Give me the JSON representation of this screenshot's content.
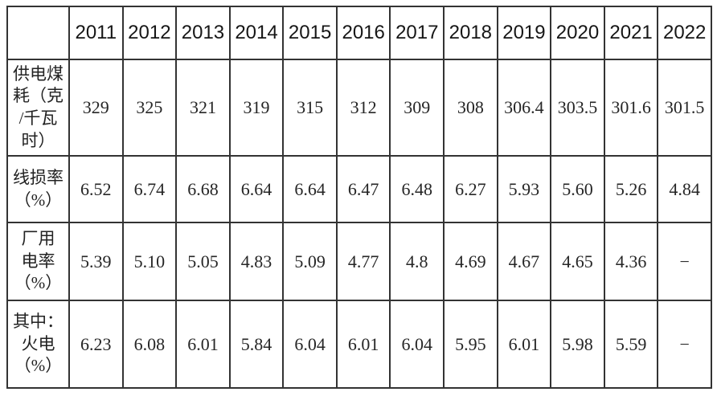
{
  "chart_data": {
    "type": "table",
    "corner_label": "",
    "columns": [
      "2011",
      "2012",
      "2013",
      "2014",
      "2015",
      "2016",
      "2017",
      "2018",
      "2019",
      "2020",
      "2021",
      "2022"
    ],
    "rows": [
      {
        "label": "供电煤耗（克/千瓦时）",
        "label_lines": [
          "供电煤",
          "耗（克",
          "/千瓦",
          "时）"
        ],
        "values": [
          "329",
          "325",
          "321",
          "319",
          "315",
          "312",
          "309",
          "308",
          "306.4",
          "303.5",
          "301.6",
          "301.5"
        ]
      },
      {
        "label": "线损率（%）",
        "label_lines": [
          "线损率",
          "（%）"
        ],
        "values": [
          "6.52",
          "6.74",
          "6.68",
          "6.64",
          "6.64",
          "6.47",
          "6.48",
          "6.27",
          "5.93",
          "5.60",
          "5.26",
          "4.84"
        ]
      },
      {
        "label": "厂用电率（%）",
        "label_lines": [
          "厂用",
          "电率",
          "（%）"
        ],
        "values": [
          "5.39",
          "5.10",
          "5.05",
          "4.83",
          "5.09",
          "4.77",
          "4.8",
          "4.69",
          "4.67",
          "4.65",
          "4.36",
          "−"
        ]
      },
      {
        "label": "其中：火电（%）",
        "label_lines": [
          "其中：",
          "火电",
          "（%）"
        ],
        "values": [
          "6.23",
          "6.08",
          "6.01",
          "5.84",
          "6.04",
          "6.01",
          "6.04",
          "5.95",
          "6.01",
          "5.98",
          "5.59",
          "−"
        ]
      }
    ],
    "missing_value_glyph": "−"
  },
  "styles": {
    "border_color": "#333333",
    "text_color": "#262626",
    "background": "#ffffff"
  }
}
